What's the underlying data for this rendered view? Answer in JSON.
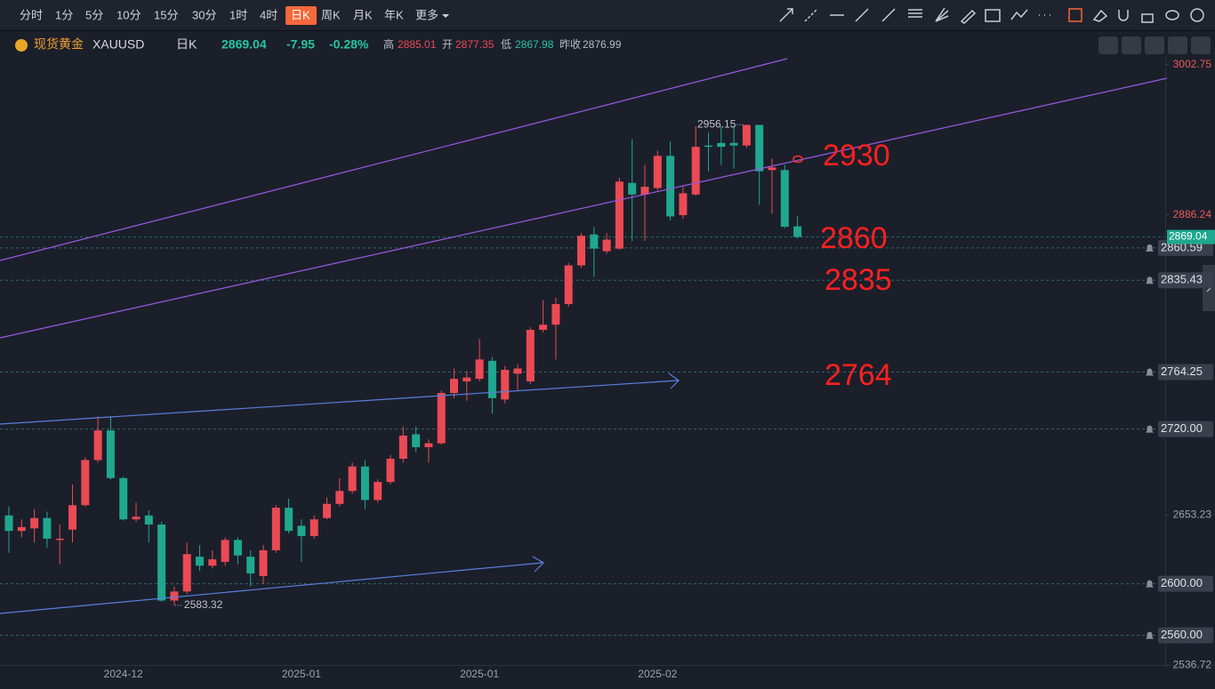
{
  "toolbar": {
    "periods": [
      "分时",
      "1分",
      "5分",
      "10分",
      "15分",
      "30分",
      "1时",
      "4时",
      "日K",
      "周K",
      "月K",
      "年K",
      "更多"
    ],
    "active": 8
  },
  "header": {
    "name": "现货黄金",
    "symbol": "XAUUSD",
    "period": "日K",
    "change": "-7.95",
    "change_pct": "-0.28%",
    "high_label": "高",
    "open_label": "开",
    "low_label": "低",
    "prev_close_label": "昨收"
  },
  "annotations": [
    "2930",
    "2860",
    "2835",
    "2764"
  ],
  "chart_data": {
    "type": "candlestick",
    "categories": [
      null,
      null,
      null,
      null,
      null,
      null,
      null,
      null,
      null,
      "2024-12",
      null,
      null,
      null,
      null,
      null,
      null,
      null,
      null,
      null,
      null,
      null,
      null,
      null,
      "2025-01",
      null,
      null,
      null,
      null,
      null,
      null,
      null,
      null,
      null,
      null,
      null,
      null,
      null,
      "2025-01",
      null,
      null,
      null,
      null,
      null,
      null,
      null,
      null,
      null,
      null,
      null,
      null,
      null,
      "2025-02",
      null,
      null,
      null,
      null,
      null,
      null,
      null,
      null,
      null,
      null,
      null
    ],
    "open": [
      2653,
      2641,
      2643,
      2651,
      2634,
      2642,
      2661,
      2696,
      2719,
      2682,
      2650,
      2653,
      2646,
      2587,
      2594,
      2621,
      2614,
      2617,
      2634,
      2621,
      2606,
      2626,
      2659,
      2645,
      2637,
      2651,
      2662,
      2672,
      2691,
      2665,
      2679,
      2697,
      2716,
      2706,
      2709,
      2748,
      2757,
      2759,
      2773,
      2743,
      2763,
      2757,
      2797,
      2801,
      2817,
      2847,
      2871,
      2858,
      2860,
      2911,
      2902,
      2907,
      2932,
      2886,
      2902,
      2940,
      2942,
      2942,
      2940,
      2956,
      2921,
      2921,
      2877.35
    ],
    "high": [
      2660,
      2650,
      2658,
      2656,
      2646,
      2677,
      2698,
      2730,
      2730,
      2683,
      2663,
      2657,
      2648,
      2598,
      2632,
      2630,
      2626,
      2636,
      2636,
      2626,
      2630,
      2661,
      2666,
      2650,
      2653,
      2667,
      2682,
      2694,
      2696,
      2681,
      2700,
      2722,
      2722,
      2712,
      2750,
      2767,
      2765,
      2790,
      2776,
      2769,
      2770,
      2799,
      2820,
      2822,
      2849,
      2872,
      2877,
      2872,
      2915,
      2945,
      2925,
      2936,
      2943,
      2908,
      2955,
      2950,
      2955,
      2955,
      2956.15,
      2956,
      2930,
      2925,
      2885.01
    ],
    "low": [
      2624,
      2636,
      2632,
      2628,
      2615,
      2632,
      2660,
      2694,
      2681,
      2649,
      2648,
      2632,
      2586,
      2583.32,
      2592,
      2610,
      2612,
      2614,
      2615,
      2598,
      2600,
      2624,
      2639,
      2617,
      2635,
      2650,
      2660,
      2670,
      2658,
      2663,
      2677,
      2694,
      2702,
      2694,
      2708,
      2744,
      2742,
      2757,
      2732,
      2740,
      2750,
      2755,
      2795,
      2774,
      2815,
      2845,
      2838,
      2856,
      2859,
      2866,
      2866,
      2905,
      2882,
      2883,
      2901,
      2920,
      2925,
      2922,
      2938,
      2894,
      2887,
      2876,
      2867.98
    ],
    "close": [
      2641,
      2644,
      2651,
      2635,
      2635,
      2661,
      2696,
      2719,
      2682,
      2650,
      2652,
      2646,
      2587,
      2594,
      2623,
      2614,
      2619,
      2634,
      2622,
      2608,
      2626,
      2659,
      2641,
      2637,
      2650,
      2662,
      2672,
      2691,
      2665,
      2679,
      2697,
      2715,
      2706,
      2709,
      2748,
      2759,
      2760,
      2774,
      2744,
      2766,
      2767,
      2797,
      2801,
      2817,
      2847,
      2870,
      2860,
      2867,
      2912,
      2902,
      2908,
      2932,
      2885,
      2903,
      2939,
      2939,
      2939,
      2940,
      2956,
      2920,
      2923,
      2876.99,
      2869.04
    ],
    "up_color": "#eb4a55",
    "down_color": "#1fa88f",
    "ylim": [
      2537,
      3006
    ],
    "yticks": [
      {
        "value": 3002.75,
        "label": "3002.75"
      },
      2886.24,
      2653.23,
      2536.72
    ],
    "alert_levels": [
      2860.59,
      2835.43,
      2764.25,
      {
        "value": 2720,
        "label": "2720.00"
      },
      {
        "value": 2600,
        "label": "2600.00"
      },
      {
        "value": 2560,
        "label": "2560.00"
      }
    ]
  }
}
